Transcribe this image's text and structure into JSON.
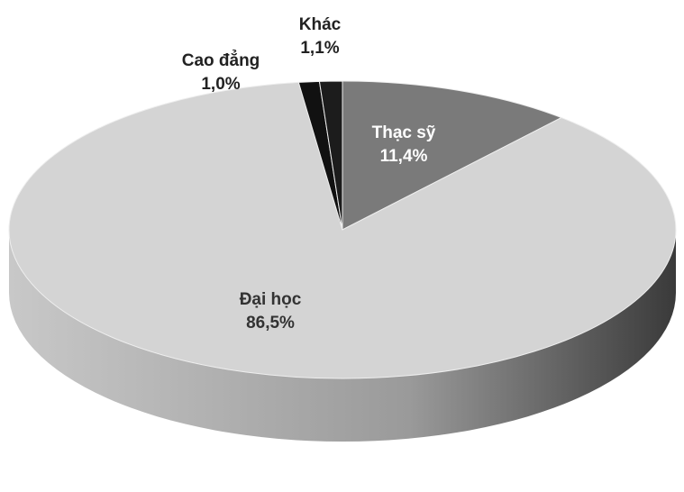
{
  "chart_data": {
    "type": "pie",
    "categories": [
      "Thạc sỹ",
      "Đại học",
      "Cao đẳng",
      "Khác"
    ],
    "values": [
      11.4,
      86.5,
      1.0,
      1.1
    ],
    "value_labels": [
      "11,4%",
      "86,5%",
      "1,0%",
      "1,1%"
    ],
    "colors": [
      "#7a7a7a",
      "#d4d4d4",
      "#111111",
      "#1c1c1c"
    ]
  }
}
